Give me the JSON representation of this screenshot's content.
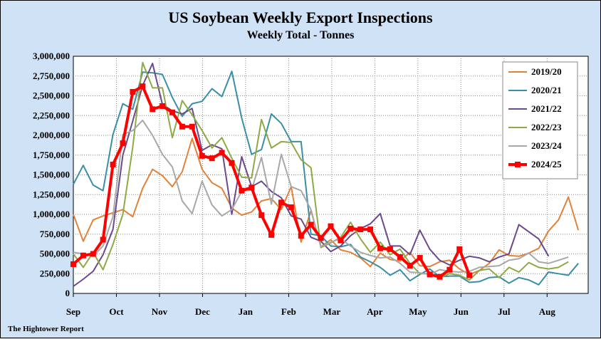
{
  "chart_data": {
    "type": "line",
    "title": "US Soybean Weekly Export Inspections",
    "subtitle": "Weekly Total - Tonnes",
    "footer": "The Hightower Report",
    "xlabel": "",
    "ylabel": "",
    "ylim": [
      0,
      3000000
    ],
    "y_ticks": [
      0,
      250000,
      500000,
      750000,
      1000000,
      1250000,
      1500000,
      1750000,
      2000000,
      2250000,
      2500000,
      2750000,
      3000000
    ],
    "y_tick_labels": [
      "0",
      "250,000",
      "500,000",
      "750,000",
      "1,000,000",
      "1,250,000",
      "1,500,000",
      "1,750,000",
      "2,000,000",
      "2,250,000",
      "2,500,000",
      "2,750,000",
      "3,000,000"
    ],
    "x_tick_labels": [
      "Sep",
      "Oct",
      "Nov",
      "Dec",
      "Jan",
      "Feb",
      "Mar",
      "Apr",
      "May",
      "Jun",
      "Jul",
      "Aug"
    ],
    "xlim": [
      0,
      52
    ],
    "x_tick_positions": [
      0,
      4.35,
      8.7,
      13.05,
      17.4,
      21.75,
      26.1,
      30.45,
      34.8,
      39.15,
      43.5,
      47.85
    ],
    "grid": true,
    "legend_position": "top-right",
    "series": [
      {
        "name": "2019/20",
        "color": "#e0823a",
        "width": 2,
        "values": [
          1000000,
          660000,
          930000,
          980000,
          1020000,
          1060000,
          970000,
          1330000,
          1570000,
          1490000,
          1350000,
          1540000,
          1960000,
          1570000,
          1400000,
          1330000,
          1080000,
          990000,
          1030000,
          1170000,
          1200000,
          1060000,
          1350000,
          650000,
          1050000,
          590000,
          680000,
          550000,
          520000,
          450000,
          340000,
          510000,
          430000,
          410000,
          520000,
          350000,
          340000,
          400000,
          420000,
          310000,
          240000,
          290000,
          380000,
          550000,
          480000,
          470000,
          510000,
          570000,
          790000,
          930000,
          1220000,
          800000
        ]
      },
      {
        "name": "2020/21",
        "color": "#3a8ea6",
        "width": 2,
        "values": [
          1380000,
          1620000,
          1370000,
          1300000,
          2010000,
          2400000,
          2330000,
          2800000,
          2790000,
          2770000,
          2480000,
          2240000,
          2400000,
          2430000,
          2590000,
          2490000,
          2810000,
          2220000,
          1760000,
          1820000,
          2270000,
          2150000,
          1920000,
          1920000,
          750000,
          730000,
          600000,
          590000,
          620000,
          460000,
          400000,
          330000,
          230000,
          300000,
          160000,
          240000,
          310000,
          210000,
          220000,
          220000,
          140000,
          150000,
          200000,
          210000,
          130000,
          200000,
          170000,
          110000,
          270000,
          250000,
          230000,
          380000
        ]
      },
      {
        "name": "2021/22",
        "color": "#6a4a8a",
        "width": 2,
        "values": [
          90000,
          180000,
          280000,
          490000,
          810000,
          1750000,
          2180000,
          2630000,
          2910000,
          2390000,
          2310000,
          2270000,
          2340000,
          1810000,
          1880000,
          1830000,
          1000000,
          1730000,
          1350000,
          1420000,
          1290000,
          1210000,
          980000,
          940000,
          710000,
          660000,
          530000,
          600000,
          730000,
          820000,
          880000,
          1010000,
          600000,
          600000,
          490000,
          800000,
          560000,
          420000,
          360000,
          420000,
          470000,
          450000,
          400000,
          460000,
          500000,
          870000,
          780000,
          690000,
          470000
        ]
      },
      {
        "name": "2022/23",
        "color": "#8eaa44",
        "width": 2,
        "values": [
          500000,
          330000,
          520000,
          300000,
          620000,
          1000000,
          1850000,
          2920000,
          2600000,
          2600000,
          1970000,
          2440000,
          2260000,
          2060000,
          1840000,
          1970000,
          1710000,
          1470000,
          1460000,
          2200000,
          1840000,
          1920000,
          1910000,
          1690000,
          1590000,
          580000,
          640000,
          710000,
          900000,
          690000,
          520000,
          650000,
          490000,
          560000,
          380000,
          250000,
          250000,
          200000,
          250000,
          230000,
          170000,
          290000,
          310000,
          200000,
          330000,
          270000,
          390000,
          330000,
          310000,
          330000,
          400000
        ]
      },
      {
        "name": "2023/24",
        "color": "#a8a8a8",
        "width": 2,
        "values": [
          520000,
          500000,
          470000,
          600000,
          970000,
          2010000,
          2060000,
          2190000,
          2000000,
          1760000,
          1600000,
          1170000,
          1010000,
          1420000,
          1120000,
          980000,
          1060000,
          1290000,
          1310000,
          1720000,
          1130000,
          1760000,
          1350000,
          1300000,
          1060000,
          590000,
          650000,
          690000,
          600000,
          520000,
          480000,
          450000,
          460000,
          380000,
          270000,
          260000,
          240000,
          300000,
          280000,
          270000,
          280000,
          330000,
          340000,
          350000,
          420000,
          440000,
          510000,
          400000,
          380000,
          420000,
          460000
        ]
      },
      {
        "name": "2024/25",
        "color": "#ff0000",
        "width": 4,
        "markers": true,
        "values": [
          370000,
          480000,
          500000,
          680000,
          1630000,
          1900000,
          2550000,
          2620000,
          2330000,
          2370000,
          2290000,
          2110000,
          2110000,
          1740000,
          1710000,
          1780000,
          1650000,
          1300000,
          1340000,
          990000,
          740000,
          1150000,
          1090000,
          730000,
          870000,
          700000,
          850000,
          670000,
          820000,
          810000,
          810000,
          570000,
          560000,
          460000,
          350000,
          450000,
          240000,
          210000,
          300000,
          560000,
          230000
        ]
      }
    ]
  }
}
